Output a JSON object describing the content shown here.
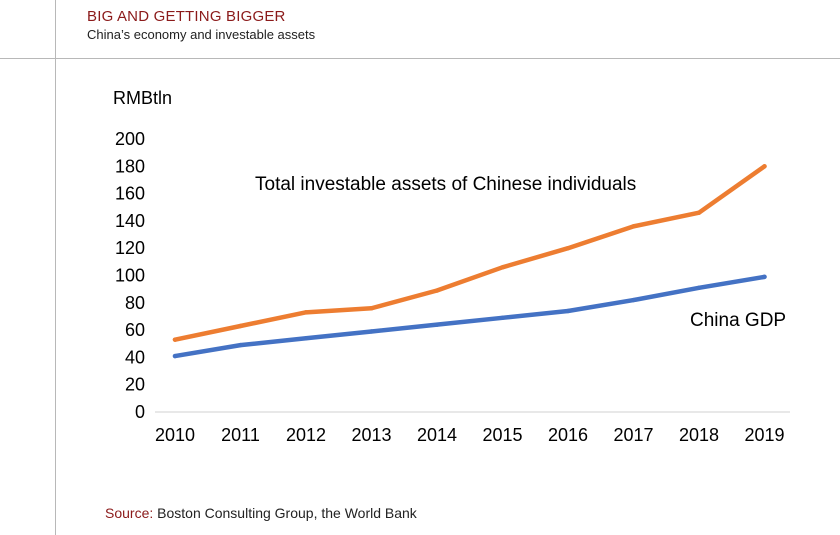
{
  "header": {
    "title": "BIG AND GETTING BIGGER",
    "subtitle": "China’s economy and investable assets"
  },
  "source": {
    "label": "Source:",
    "text": " Boston Consulting Group, the World Bank"
  },
  "colors": {
    "assets": "#ed7d31",
    "gdp": "#4472c4",
    "title": "#8b1a1a"
  },
  "chart_data": {
    "type": "line",
    "title": "",
    "ylabel": "RMBtln",
    "xlabel": "",
    "ylim": [
      0,
      200
    ],
    "yticks": [
      0,
      20,
      40,
      60,
      80,
      100,
      120,
      140,
      160,
      180,
      200
    ],
    "categories": [
      "2010",
      "2011",
      "2012",
      "2013",
      "2014",
      "2015",
      "2016",
      "2017",
      "2018",
      "2019"
    ],
    "grid": false,
    "series": [
      {
        "name": "Total investable assets of Chinese individuals",
        "color": "#ed7d31",
        "values": [
          53,
          63,
          73,
          76,
          89,
          106,
          120,
          136,
          146,
          180
        ]
      },
      {
        "name": "China GDP",
        "color": "#4472c4",
        "values": [
          41,
          49,
          54,
          59,
          64,
          69,
          74,
          82,
          91,
          99
        ]
      }
    ]
  }
}
